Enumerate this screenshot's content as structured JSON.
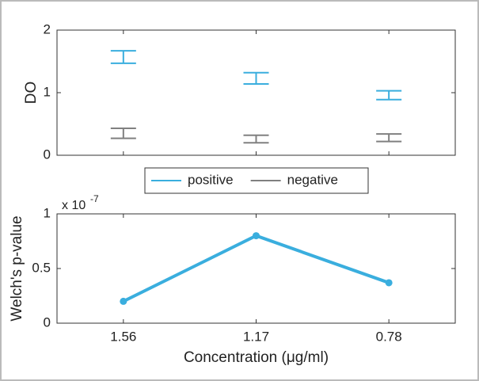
{
  "chart_data": [
    {
      "type": "errorbar",
      "ylabel": "DO",
      "categories": [
        null,
        null,
        null
      ],
      "xlim": [
        0.5,
        3.5
      ],
      "ylim": [
        0,
        2
      ],
      "yticks": [
        0,
        1,
        2
      ],
      "legend": "south-outside",
      "series": [
        {
          "name": "positive",
          "color": "#3aaede",
          "values": [
            1.57,
            1.23,
            0.96
          ],
          "errors": [
            0.1,
            0.09,
            0.07
          ]
        },
        {
          "name": "negative",
          "color": "#808080",
          "values": [
            0.35,
            0.26,
            0.28
          ],
          "errors": [
            0.08,
            0.06,
            0.06
          ]
        }
      ]
    },
    {
      "type": "line",
      "xlabel": "Concentration (μg/ml)",
      "ylabel": "Welch's p-value",
      "y_multiplier": {
        "base": "x 10",
        "exponent": "-7"
      },
      "categories": [
        "1.56",
        "1.17",
        "0.78"
      ],
      "xlim": [
        0.5,
        3.5
      ],
      "ylim": [
        0,
        1
      ],
      "yticks": [
        0,
        0.5,
        1
      ],
      "series": [
        {
          "name": "p-value",
          "color": "#3aaede",
          "values": [
            0.2,
            0.8,
            0.37
          ]
        }
      ]
    }
  ]
}
